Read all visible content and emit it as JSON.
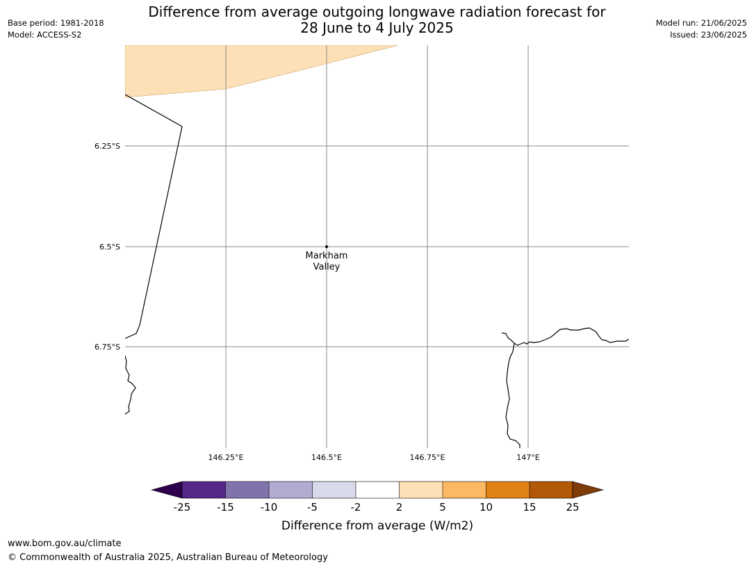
{
  "header": {
    "title_line1": "Difference from average outgoing longwave radiation forecast for",
    "title_line2": "28 June to 4 July 2025",
    "base_period": "Base period: 1981-2018",
    "model": "Model: ACCESS-S2",
    "model_run": "Model run: 21/06/2025",
    "issued": "Issued: 23/06/2025"
  },
  "map": {
    "lat_labels": [
      "6.25°S",
      "6.5°S",
      "6.75°S"
    ],
    "lon_labels": [
      "146.25°E",
      "146.5°E",
      "146.75°E",
      "147°E"
    ],
    "place": {
      "name_line1": "Markham",
      "name_line2": "Valley"
    },
    "anomaly_fill_color": "#fde0b6",
    "coastline_color": "#000000",
    "grid_color": "#888888"
  },
  "legend": {
    "label": "Difference from average (W/m2)",
    "ticks": [
      "-25",
      "-15",
      "-10",
      "-5",
      "-2",
      "2",
      "5",
      "10",
      "15",
      "25"
    ],
    "colors": [
      "#2d004b",
      "#542788",
      "#8073ac",
      "#b2abd2",
      "#d8daeb",
      "#ffffff",
      "#fee0b6",
      "#fdb863",
      "#e08214",
      "#b35806",
      "#7f3b08"
    ]
  },
  "footer": {
    "url": "www.bom.gov.au/climate",
    "copyright": "© Commonwealth of Australia 2025, Australian Bureau of Meteorology"
  }
}
